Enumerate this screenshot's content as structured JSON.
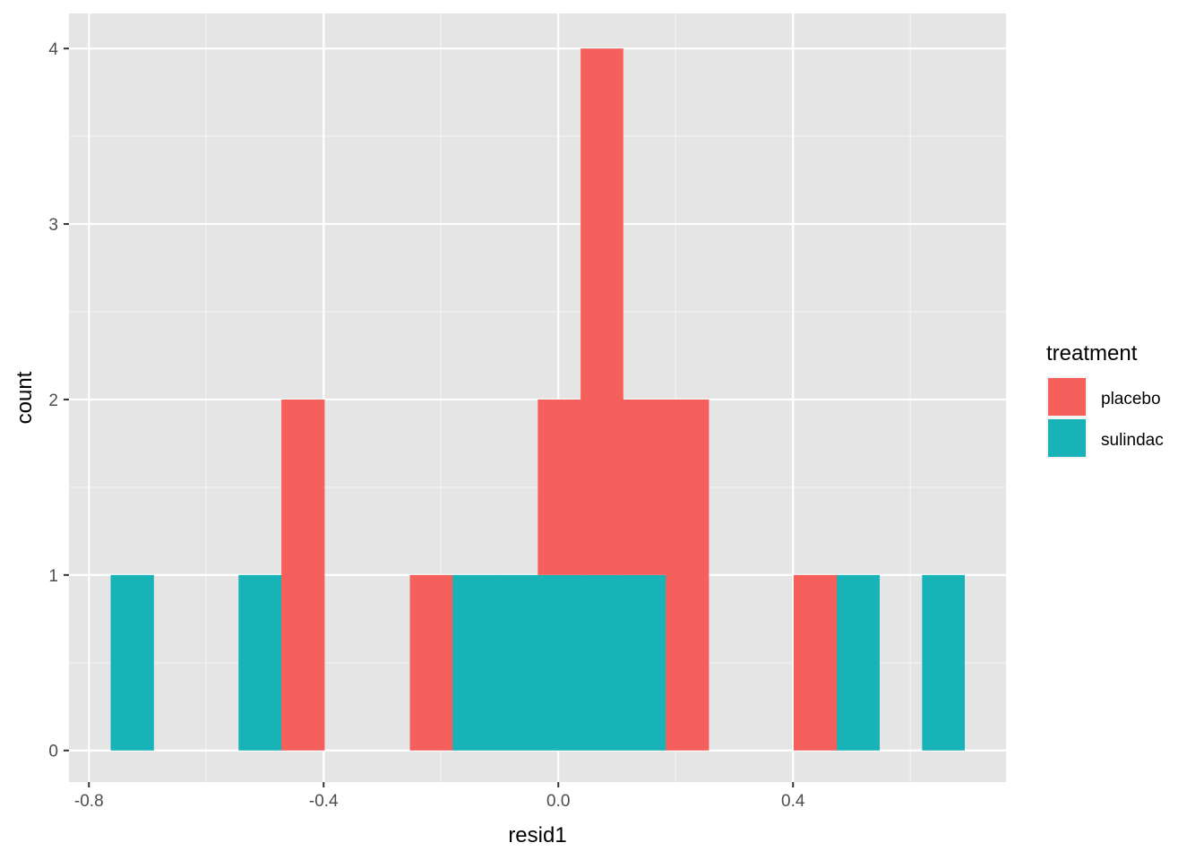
{
  "chart_data": {
    "type": "bar",
    "subtype": "stacked-histogram",
    "xlabel": "resid1",
    "ylabel": "count",
    "xlim": [
      -0.834,
      0.763
    ],
    "ylim": [
      -0.18,
      4.2
    ],
    "xticks": [
      -0.8,
      -0.4,
      0.0,
      0.4
    ],
    "xtick_labels": [
      "-0.8",
      "-0.4",
      "0.0",
      "0.4"
    ],
    "yticks": [
      0,
      1,
      2,
      3,
      4
    ],
    "ytick_labels": [
      "0",
      "1",
      "2",
      "3",
      "4"
    ],
    "grid": true,
    "legend": {
      "title": "treatment",
      "placement": "right"
    },
    "series": [
      {
        "name": "placebo",
        "color": "#F5605C",
        "bins": [
          {
            "xmin": -0.472,
            "xmax": -0.399,
            "count": 2
          },
          {
            "xmin": -0.253,
            "xmax": -0.181,
            "count": 1
          },
          {
            "xmin": -0.035,
            "xmax": 0.038,
            "count": 1
          },
          {
            "xmin": 0.038,
            "xmax": 0.11,
            "count": 3
          },
          {
            "xmin": 0.11,
            "xmax": 0.183,
            "count": 1
          },
          {
            "xmin": 0.183,
            "xmax": 0.256,
            "count": 2
          },
          {
            "xmin": 0.401,
            "xmax": 0.474,
            "count": 1
          }
        ]
      },
      {
        "name": "sulindac",
        "color": "#18B3B7",
        "bins": [
          {
            "xmin": -0.763,
            "xmax": -0.69,
            "count": 1
          },
          {
            "xmin": -0.545,
            "xmax": -0.472,
            "count": 1
          },
          {
            "xmin": -0.181,
            "xmax": -0.108,
            "count": 1
          },
          {
            "xmin": -0.108,
            "xmax": -0.035,
            "count": 1
          },
          {
            "xmin": -0.035,
            "xmax": 0.038,
            "count": 1
          },
          {
            "xmin": 0.038,
            "xmax": 0.11,
            "count": 1
          },
          {
            "xmin": 0.11,
            "xmax": 0.183,
            "count": 1
          },
          {
            "xmin": 0.474,
            "xmax": 0.547,
            "count": 1
          },
          {
            "xmin": 0.62,
            "xmax": 0.692,
            "count": 1
          }
        ]
      }
    ]
  }
}
